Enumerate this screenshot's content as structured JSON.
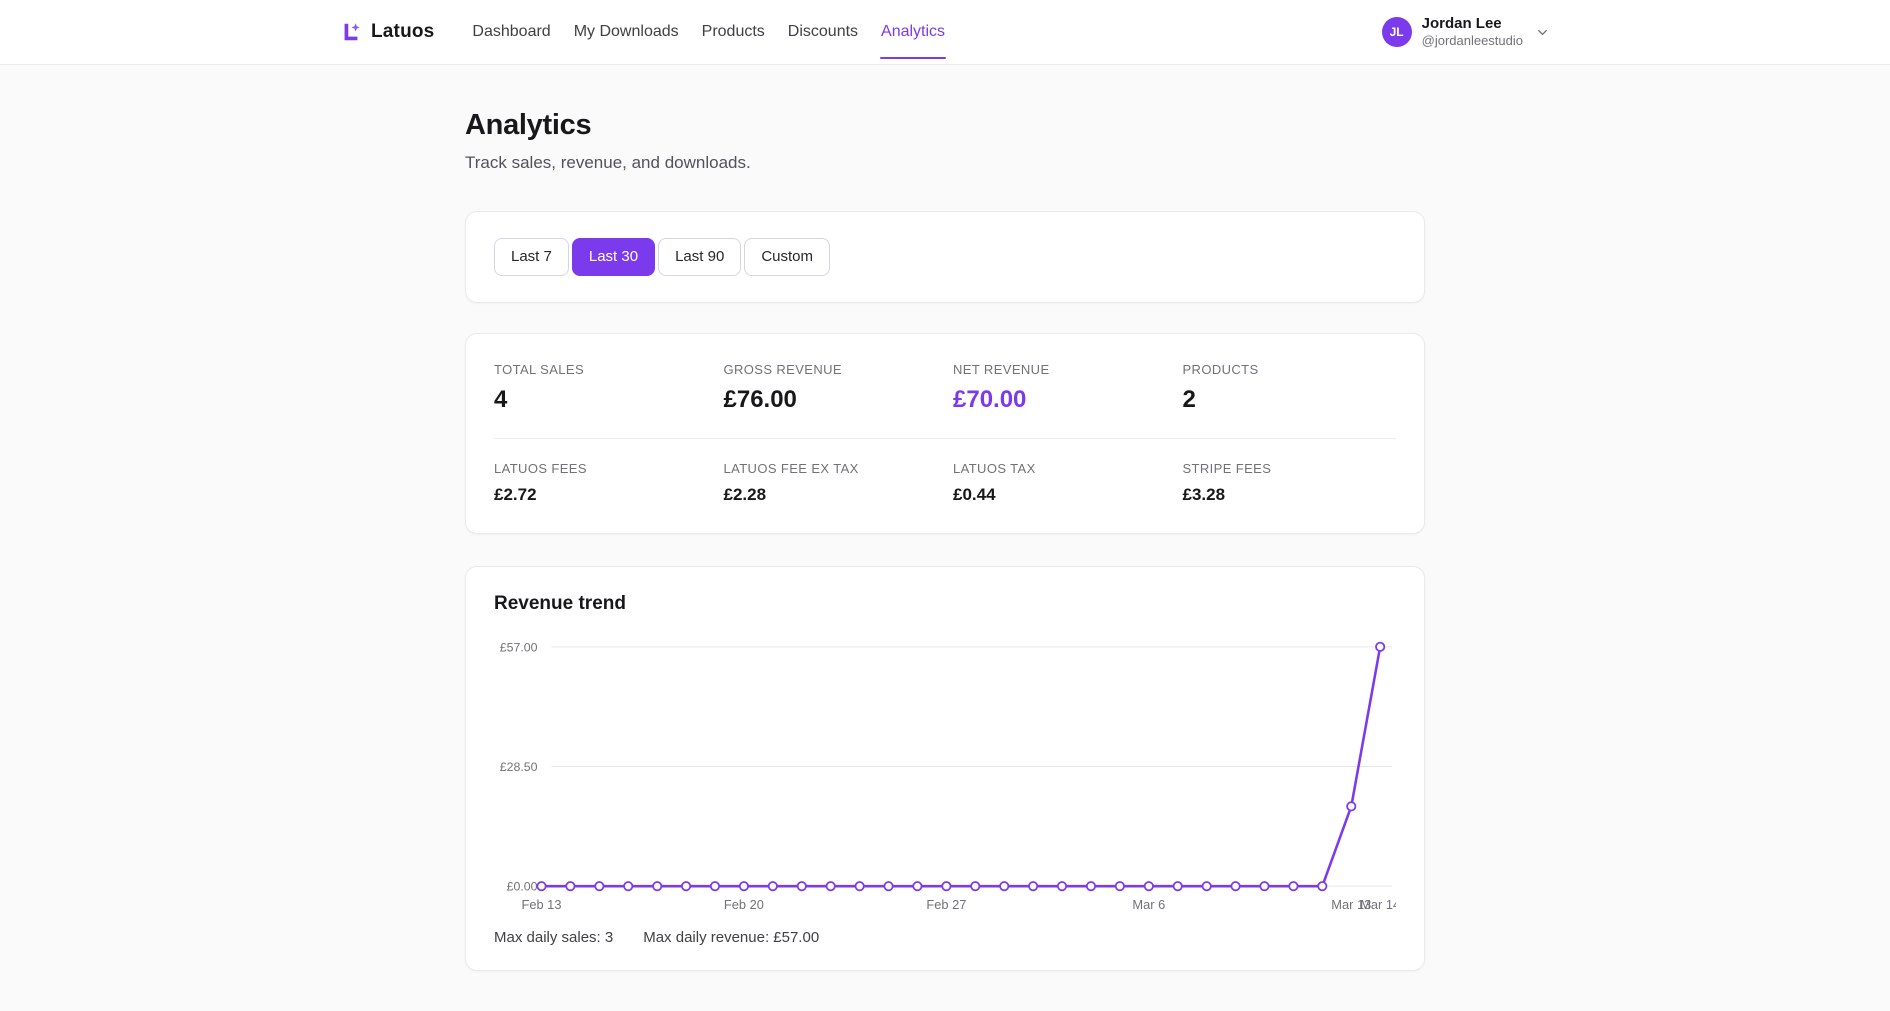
{
  "colors": {
    "accent": "#7c3aed",
    "muted": "#71717a",
    "grid": "#e7e7ec"
  },
  "brand": {
    "name": "Latuos",
    "logo_icon": "latuos-l-spark-mark"
  },
  "nav": {
    "items": [
      {
        "label": "Dashboard",
        "active": false
      },
      {
        "label": "My Downloads",
        "active": false
      },
      {
        "label": "Products",
        "active": false
      },
      {
        "label": "Discounts",
        "active": false
      },
      {
        "label": "Analytics",
        "active": true
      }
    ]
  },
  "user": {
    "initials": "JL",
    "name": "Jordan Lee",
    "handle": "@jordanleestudio",
    "menu_icon": "chevron-down-icon"
  },
  "page": {
    "title": "Analytics",
    "subtitle": "Track sales, revenue, and downloads."
  },
  "range_tabs": [
    {
      "label": "Last 7",
      "active": false
    },
    {
      "label": "Last 30",
      "active": true
    },
    {
      "label": "Last 90",
      "active": false
    },
    {
      "label": "Custom",
      "active": false
    }
  ],
  "stats": {
    "primary": [
      {
        "label": "TOTAL SALES",
        "value": "4",
        "accent": false
      },
      {
        "label": "GROSS REVENUE",
        "value": "£76.00",
        "accent": false
      },
      {
        "label": "NET REVENUE",
        "value": "£70.00",
        "accent": true
      },
      {
        "label": "PRODUCTS",
        "value": "2",
        "accent": false
      }
    ],
    "secondary": [
      {
        "label": "LATUOS FEES",
        "value": "£2.72",
        "accent": false
      },
      {
        "label": "LATUOS FEE EX TAX",
        "value": "£2.28",
        "accent": false
      },
      {
        "label": "LATUOS TAX",
        "value": "£0.44",
        "accent": false
      },
      {
        "label": "STRIPE FEES",
        "value": "£3.28",
        "accent": false
      }
    ]
  },
  "chart_card": {
    "title": "Revenue trend",
    "footer": {
      "max_daily_sales": "Max daily sales: 3",
      "max_daily_revenue": "Max daily revenue: £57.00"
    }
  },
  "chart_data": {
    "type": "line",
    "title": "Revenue trend",
    "x": [
      "Feb 13",
      "Feb 14",
      "Feb 15",
      "Feb 16",
      "Feb 17",
      "Feb 18",
      "Feb 19",
      "Feb 20",
      "Feb 21",
      "Feb 22",
      "Feb 23",
      "Feb 24",
      "Feb 25",
      "Feb 26",
      "Feb 27",
      "Feb 28",
      "Mar 1",
      "Mar 2",
      "Mar 3",
      "Mar 4",
      "Mar 5",
      "Mar 6",
      "Mar 7",
      "Mar 8",
      "Mar 9",
      "Mar 10",
      "Mar 11",
      "Mar 12",
      "Mar 13",
      "Mar 14"
    ],
    "values": [
      0,
      0,
      0,
      0,
      0,
      0,
      0,
      0,
      0,
      0,
      0,
      0,
      0,
      0,
      0,
      0,
      0,
      0,
      0,
      0,
      0,
      0,
      0,
      0,
      0,
      0,
      0,
      0,
      19,
      57
    ],
    "ylim": [
      0,
      57
    ],
    "yticks": [
      {
        "label": "£57.00",
        "value": 57
      },
      {
        "label": "£28.50",
        "value": 28.5
      },
      {
        "label": "£0.00",
        "value": 0
      }
    ],
    "xticks": [
      {
        "label": "Feb 13",
        "index": 0
      },
      {
        "label": "Feb 20",
        "index": 7
      },
      {
        "label": "Feb 27",
        "index": 14
      },
      {
        "label": "Mar 6",
        "index": 21
      },
      {
        "label": "Mar 13",
        "index": 28
      },
      {
        "label": "Mar 14",
        "index": 29
      }
    ],
    "line_color": "#7c3aed",
    "marker": "open-circle",
    "grid": true,
    "legend": "none"
  }
}
